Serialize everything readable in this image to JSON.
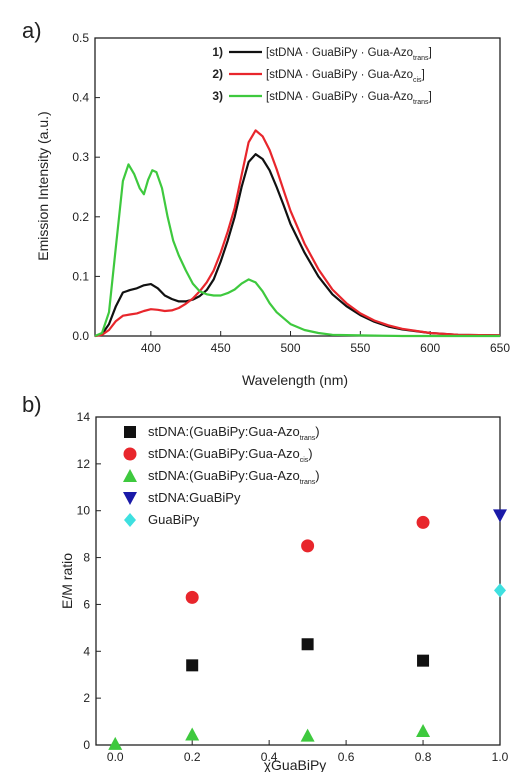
{
  "chart_data": [
    {
      "type": "line",
      "panel_label": "a)",
      "xlabel": "Wavelength (nm)",
      "ylabel": "Emission Intensity (a.u.)",
      "xlim": [
        360,
        650
      ],
      "ylim": [
        0,
        0.5
      ],
      "xticks": [
        "400",
        "450",
        "500",
        "550",
        "600",
        "650"
      ],
      "yticks": [
        "0.0",
        "0.1",
        "0.2",
        "0.3",
        "0.4",
        "0.5"
      ],
      "legend_position": "top-right",
      "series": [
        {
          "num": "1)",
          "name_main": "[stDNA · GuaBiPy · Gua-Azo",
          "name_sub": "trans",
          "name_end": "]",
          "color": "#111111",
          "points": [
            [
              360,
              0
            ],
            [
              365,
              0.003
            ],
            [
              370,
              0.02
            ],
            [
              375,
              0.05
            ],
            [
              380,
              0.073
            ],
            [
              385,
              0.077
            ],
            [
              390,
              0.08
            ],
            [
              395,
              0.085
            ],
            [
              400,
              0.087
            ],
            [
              405,
              0.08
            ],
            [
              410,
              0.068
            ],
            [
              415,
              0.062
            ],
            [
              420,
              0.058
            ],
            [
              425,
              0.058
            ],
            [
              430,
              0.061
            ],
            [
              435,
              0.067
            ],
            [
              440,
              0.077
            ],
            [
              445,
              0.095
            ],
            [
              450,
              0.125
            ],
            [
              455,
              0.16
            ],
            [
              460,
              0.2
            ],
            [
              465,
              0.25
            ],
            [
              470,
              0.292
            ],
            [
              475,
              0.305
            ],
            [
              480,
              0.297
            ],
            [
              485,
              0.278
            ],
            [
              490,
              0.25
            ],
            [
              495,
              0.22
            ],
            [
              500,
              0.188
            ],
            [
              510,
              0.14
            ],
            [
              520,
              0.1
            ],
            [
              530,
              0.07
            ],
            [
              540,
              0.05
            ],
            [
              550,
              0.035
            ],
            [
              560,
              0.024
            ],
            [
              570,
              0.016
            ],
            [
              580,
              0.011
            ],
            [
              600,
              0.005
            ],
            [
              620,
              0.002
            ],
            [
              650,
              0.001
            ]
          ]
        },
        {
          "num": "2)",
          "name_main": "[stDNA · GuaBiPy · Gua-Azo",
          "name_sub": "cis",
          "name_end": "]",
          "color": "#e8262c",
          "points": [
            [
              360,
              0
            ],
            [
              365,
              0.002
            ],
            [
              370,
              0.01
            ],
            [
              375,
              0.025
            ],
            [
              380,
              0.034
            ],
            [
              385,
              0.036
            ],
            [
              390,
              0.038
            ],
            [
              395,
              0.042
            ],
            [
              400,
              0.045
            ],
            [
              405,
              0.044
            ],
            [
              410,
              0.042
            ],
            [
              415,
              0.043
            ],
            [
              420,
              0.047
            ],
            [
              425,
              0.054
            ],
            [
              430,
              0.063
            ],
            [
              435,
              0.075
            ],
            [
              440,
              0.09
            ],
            [
              445,
              0.11
            ],
            [
              450,
              0.14
            ],
            [
              455,
              0.175
            ],
            [
              460,
              0.215
            ],
            [
              465,
              0.27
            ],
            [
              470,
              0.325
            ],
            [
              475,
              0.345
            ],
            [
              480,
              0.335
            ],
            [
              485,
              0.312
            ],
            [
              490,
              0.28
            ],
            [
              495,
              0.245
            ],
            [
              500,
              0.21
            ],
            [
              510,
              0.155
            ],
            [
              520,
              0.112
            ],
            [
              530,
              0.078
            ],
            [
              540,
              0.055
            ],
            [
              550,
              0.038
            ],
            [
              560,
              0.026
            ],
            [
              570,
              0.018
            ],
            [
              580,
              0.012
            ],
            [
              600,
              0.005
            ],
            [
              620,
              0.002
            ],
            [
              650,
              0.001
            ]
          ]
        },
        {
          "num": "3)",
          "name_main": "[stDNA · GuaBiPy · Gua-Azo",
          "name_sub": "trans",
          "name_end": "]",
          "color": "#3ec93e",
          "points": [
            [
              360,
              0
            ],
            [
              365,
              0.005
            ],
            [
              370,
              0.04
            ],
            [
              375,
              0.15
            ],
            [
              380,
              0.26
            ],
            [
              384,
              0.288
            ],
            [
              388,
              0.272
            ],
            [
              392,
              0.248
            ],
            [
              395,
              0.238
            ],
            [
              398,
              0.262
            ],
            [
              401,
              0.278
            ],
            [
              404,
              0.275
            ],
            [
              408,
              0.248
            ],
            [
              412,
              0.2
            ],
            [
              416,
              0.16
            ],
            [
              420,
              0.135
            ],
            [
              425,
              0.11
            ],
            [
              430,
              0.088
            ],
            [
              435,
              0.075
            ],
            [
              440,
              0.07
            ],
            [
              445,
              0.068
            ],
            [
              450,
              0.068
            ],
            [
              455,
              0.072
            ],
            [
              460,
              0.078
            ],
            [
              465,
              0.088
            ],
            [
              470,
              0.095
            ],
            [
              475,
              0.09
            ],
            [
              480,
              0.075
            ],
            [
              485,
              0.055
            ],
            [
              490,
              0.04
            ],
            [
              500,
              0.02
            ],
            [
              510,
              0.01
            ],
            [
              520,
              0.005
            ],
            [
              530,
              0.002
            ],
            [
              550,
              0.001
            ],
            [
              580,
              0
            ],
            [
              650,
              0
            ]
          ]
        }
      ]
    },
    {
      "type": "scatter",
      "panel_label": "b)",
      "xlabel": "χGuaBiPy",
      "ylabel": "E/M ratio",
      "xlim": [
        -0.05,
        1.0
      ],
      "ylim": [
        0,
        14
      ],
      "xticks": [
        "0.0",
        "0.2",
        "0.4",
        "0.6",
        "0.8",
        "1.0"
      ],
      "yticks": [
        "0",
        "2",
        "4",
        "6",
        "8",
        "10",
        "12",
        "14"
      ],
      "legend_position": "top-left",
      "series": [
        {
          "name_main": "stDNA:(GuaBiPy:Gua-Azo",
          "name_sub": "trans",
          "name_end": ")",
          "color": "#111111",
          "marker": "square",
          "points": [
            [
              0.2,
              3.4
            ],
            [
              0.5,
              4.3
            ],
            [
              0.8,
              3.6
            ]
          ]
        },
        {
          "name_main": "stDNA:(GuaBiPy:Gua-Azo",
          "name_sub": "cis",
          "name_end": ")",
          "color": "#e8262c",
          "marker": "circle",
          "points": [
            [
              0.2,
              6.3
            ],
            [
              0.5,
              8.5
            ],
            [
              0.8,
              9.5
            ]
          ]
        },
        {
          "name_main": "stDNA:(GuaBiPy:Gua-Azo",
          "name_sub": "trans",
          "name_end": ")",
          "color": "#3ec93e",
          "marker": "triangle-up",
          "points": [
            [
              0.0,
              0.05
            ],
            [
              0.2,
              0.45
            ],
            [
              0.5,
              0.4
            ],
            [
              0.8,
              0.6
            ]
          ]
        },
        {
          "name_main": "stDNA:GuaBiPy",
          "name_sub": "",
          "name_end": "",
          "color": "#1a1aa8",
          "marker": "triangle-down",
          "points": [
            [
              1.0,
              9.8
            ]
          ]
        },
        {
          "name_main": "GuaBiPy",
          "name_sub": "",
          "name_end": "",
          "color": "#3ee0e0",
          "marker": "diamond",
          "points": [
            [
              1.0,
              6.6
            ]
          ]
        }
      ]
    }
  ]
}
